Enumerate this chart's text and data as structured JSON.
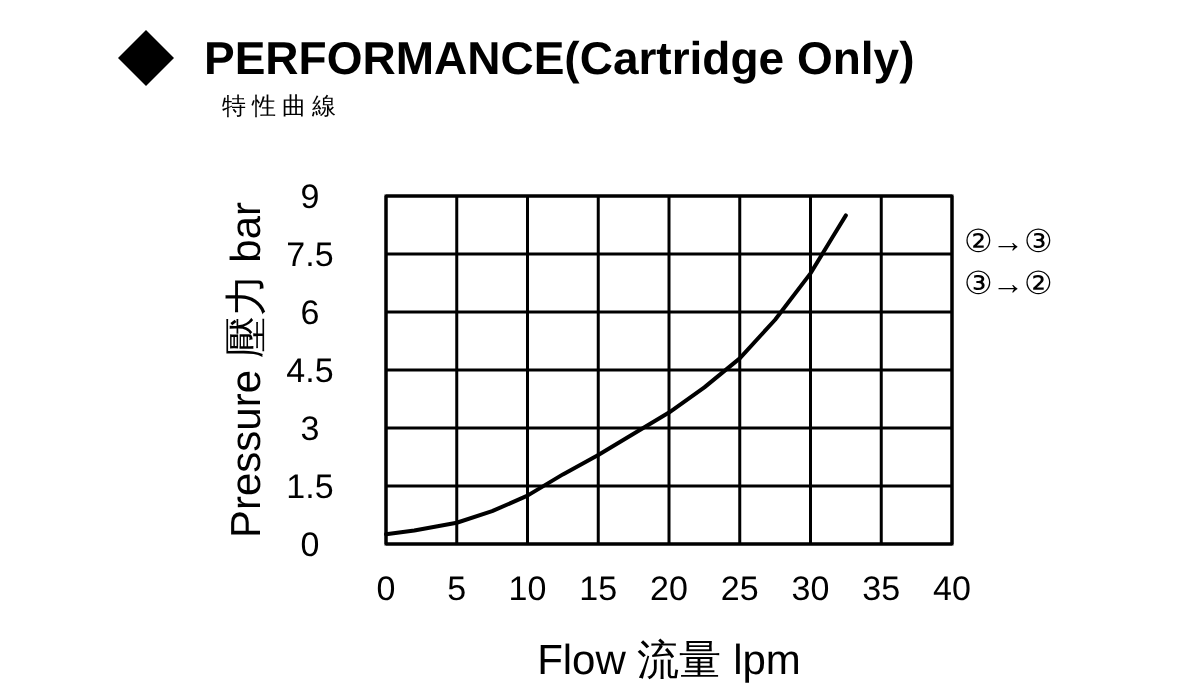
{
  "chart_data": {
    "type": "line",
    "title": "PERFORMANCE(Cartridge Only)",
    "subtitle": "特性曲線",
    "xlabel": "Flow 流量 lpm",
    "ylabel": "Pressure 壓力 bar",
    "x": [
      0,
      2,
      5,
      7.5,
      10,
      12.5,
      15,
      17.5,
      20,
      22.5,
      25,
      27.5,
      30,
      31.5,
      32.5
    ],
    "series": [
      {
        "color": "#000000",
        "values": [
          0.25,
          0.35,
          0.55,
          0.85,
          1.25,
          1.8,
          2.3,
          2.85,
          3.4,
          4.05,
          4.8,
          5.8,
          7.0,
          7.9,
          8.5
        ]
      }
    ],
    "xlim": [
      0,
      40
    ],
    "xticks": [
      0,
      5,
      10,
      15,
      20,
      25,
      30,
      35,
      40
    ],
    "ylim": [
      0,
      9
    ],
    "yticks": [
      0,
      1.5,
      3,
      4.5,
      6,
      7.5,
      9
    ],
    "grid": true,
    "marker": "none",
    "line_style": "solid",
    "annotations": [
      "②→③",
      "③→②"
    ]
  }
}
